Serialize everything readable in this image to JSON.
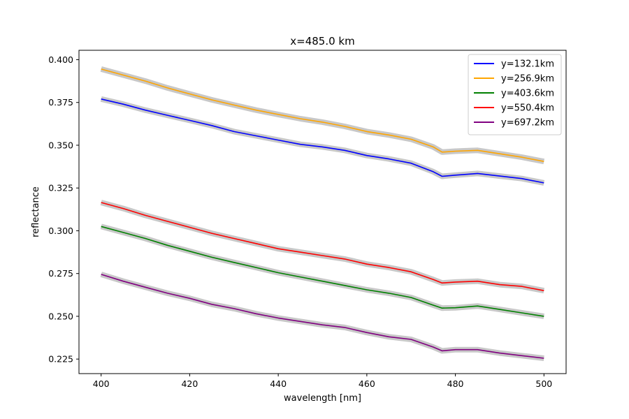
{
  "chart_data": {
    "type": "line",
    "title": "x=485.0 km",
    "xlabel": "wavelength [nm]",
    "ylabel": "reflectance",
    "xlim": [
      395,
      505
    ],
    "ylim": [
      0.2165,
      0.4055
    ],
    "xticks": [
      400,
      420,
      440,
      460,
      480,
      500
    ],
    "xtick_labels": [
      "400",
      "420",
      "440",
      "460",
      "480",
      "500"
    ],
    "yticks": [
      0.225,
      0.25,
      0.275,
      0.3,
      0.325,
      0.35,
      0.375,
      0.4
    ],
    "ytick_labels": [
      "0.225",
      "0.250",
      "0.275",
      "0.300",
      "0.325",
      "0.350",
      "0.375",
      "0.400"
    ],
    "legend_position": "top-right",
    "grid": false,
    "uncertainty_band_color": "#c8c8c8",
    "series": [
      {
        "name": "y=132.1km",
        "color": "#0000ff",
        "x": [
          400,
          405,
          410,
          415,
          420,
          425,
          430,
          435,
          440,
          445,
          450,
          455,
          460,
          465,
          470,
          475,
          477,
          480,
          485,
          490,
          495,
          500
        ],
        "values": [
          0.377,
          0.374,
          0.3705,
          0.3675,
          0.3645,
          0.3615,
          0.358,
          0.3555,
          0.353,
          0.3505,
          0.349,
          0.347,
          0.344,
          0.342,
          0.3395,
          0.3345,
          0.3318,
          0.3325,
          0.3335,
          0.332,
          0.3305,
          0.328
        ]
      },
      {
        "name": "y=256.9km",
        "color": "#ffa500",
        "x": [
          400,
          405,
          410,
          415,
          420,
          425,
          430,
          435,
          440,
          445,
          450,
          455,
          460,
          465,
          470,
          475,
          477,
          480,
          485,
          490,
          495,
          500
        ],
        "values": [
          0.3945,
          0.391,
          0.3875,
          0.3835,
          0.38,
          0.3765,
          0.3735,
          0.3705,
          0.368,
          0.3655,
          0.3635,
          0.361,
          0.358,
          0.356,
          0.3535,
          0.349,
          0.346,
          0.3465,
          0.347,
          0.345,
          0.343,
          0.3405
        ]
      },
      {
        "name": "y=403.6km",
        "color": "#008000",
        "x": [
          400,
          405,
          410,
          415,
          420,
          425,
          430,
          435,
          440,
          445,
          450,
          455,
          460,
          465,
          470,
          475,
          477,
          480,
          485,
          490,
          495,
          500
        ],
        "values": [
          0.3025,
          0.299,
          0.2955,
          0.2915,
          0.288,
          0.2845,
          0.2815,
          0.2785,
          0.2755,
          0.273,
          0.2705,
          0.268,
          0.2655,
          0.2635,
          0.261,
          0.2565,
          0.2548,
          0.255,
          0.256,
          0.254,
          0.252,
          0.25
        ]
      },
      {
        "name": "y=550.4km",
        "color": "#ff0000",
        "x": [
          400,
          405,
          410,
          415,
          420,
          425,
          430,
          435,
          440,
          445,
          450,
          455,
          460,
          465,
          470,
          475,
          477,
          480,
          485,
          490,
          495,
          500
        ],
        "values": [
          0.3165,
          0.313,
          0.309,
          0.3055,
          0.302,
          0.2985,
          0.2955,
          0.2925,
          0.2895,
          0.2875,
          0.2855,
          0.2835,
          0.2805,
          0.2785,
          0.276,
          0.2715,
          0.2695,
          0.27,
          0.2705,
          0.2685,
          0.2675,
          0.265
        ]
      },
      {
        "name": "y=697.2km",
        "color": "#800080",
        "x": [
          400,
          405,
          410,
          415,
          420,
          425,
          430,
          435,
          440,
          445,
          450,
          455,
          460,
          465,
          470,
          475,
          477,
          480,
          485,
          490,
          495,
          500
        ],
        "values": [
          0.2745,
          0.2705,
          0.267,
          0.2635,
          0.2605,
          0.257,
          0.2545,
          0.2515,
          0.249,
          0.247,
          0.245,
          0.2435,
          0.2405,
          0.238,
          0.2365,
          0.232,
          0.2298,
          0.2305,
          0.2305,
          0.2285,
          0.227,
          0.2255
        ]
      }
    ]
  }
}
